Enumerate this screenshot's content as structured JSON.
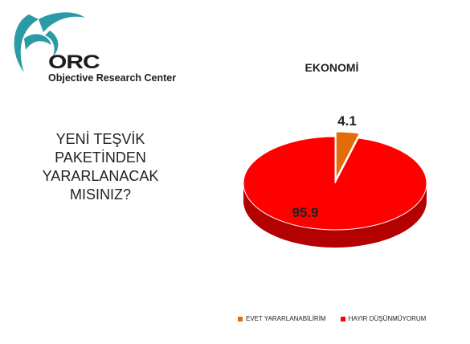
{
  "logo": {
    "mark": "ORC",
    "name": "Objective Research Center",
    "colors": {
      "teal": "#2a9aa5",
      "dark": "#1c1c1c"
    }
  },
  "question": "YENİ TEŞVİK PAKETİNDEN YARARLANACAK MISINIZ?",
  "chart_data": {
    "type": "pie",
    "title": "EKONOMİ",
    "slices": [
      {
        "label": "EVET YARARLANABİLİRİM",
        "value": 4.1,
        "display": "4.1",
        "color": "#e36c0a",
        "dark": "#a84f07"
      },
      {
        "label": "HAYIR DÜŞÜNMÜYORUM",
        "value": 95.9,
        "display": "95.9",
        "color": "#ff0000",
        "dark": "#b30000"
      }
    ],
    "legend_position": "bottom",
    "style": "3d",
    "exploded_slice": 0
  }
}
